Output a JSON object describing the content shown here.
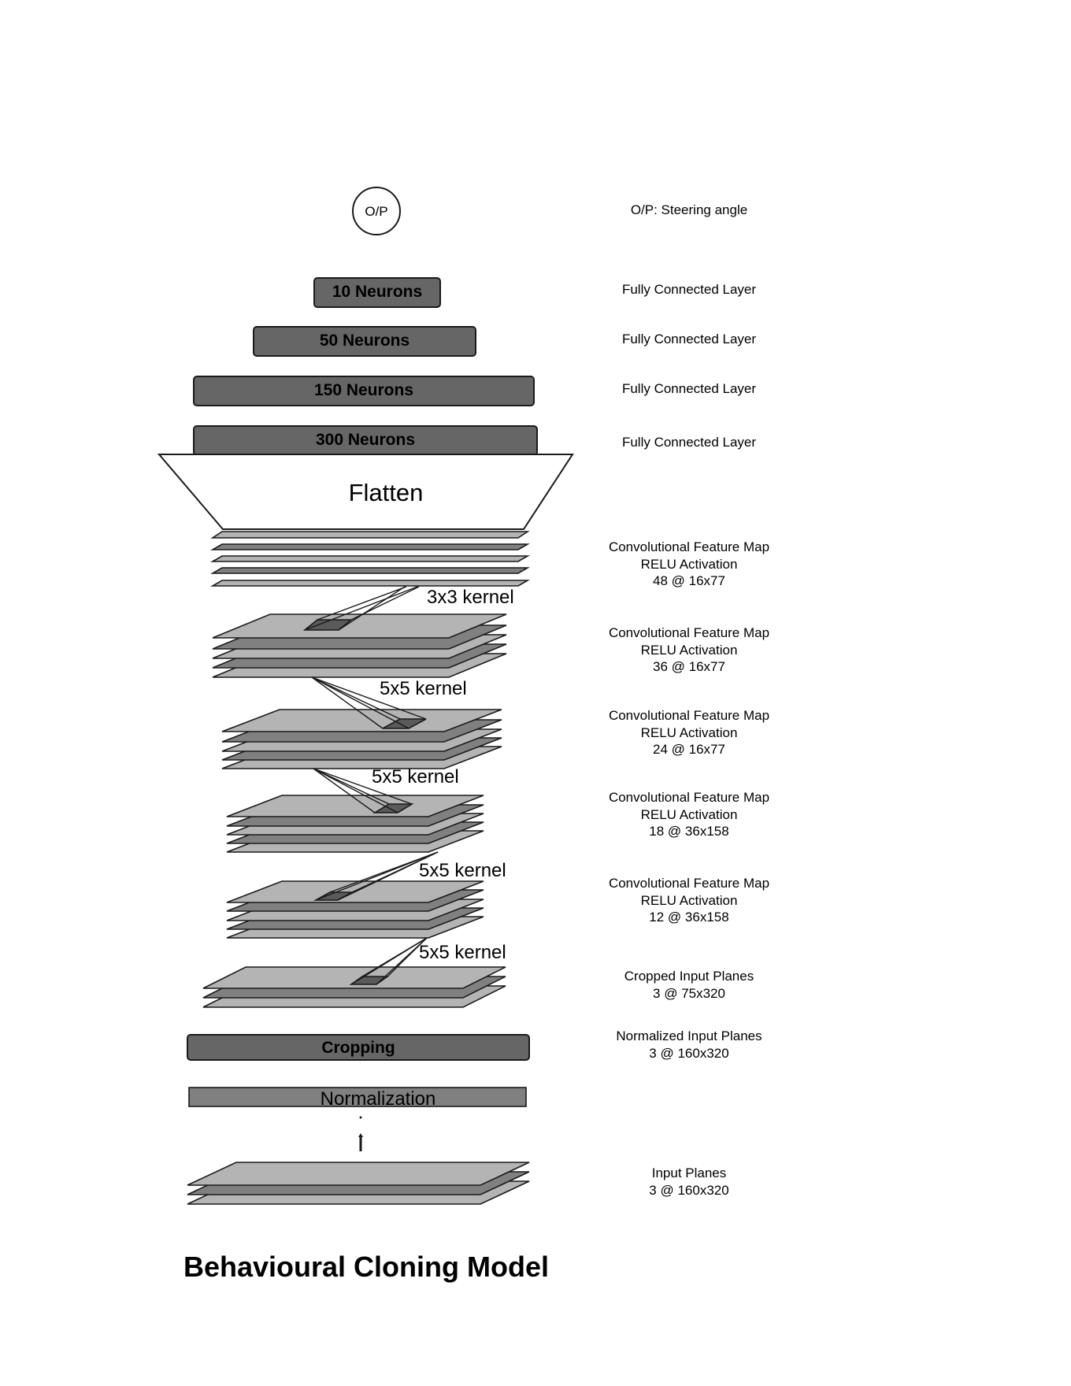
{
  "title": "Behavioural Cloning Model",
  "output_node": "O/P",
  "dense_layers": [
    "10 Neurons",
    "50 Neurons",
    "150 Neurons",
    "300 Neurons"
  ],
  "flatten_label": "Flatten",
  "cropping_label": "Cropping",
  "normalization_label": "Normalization",
  "kernels": [
    "3x3 kernel",
    "5x5 kernel",
    "5x5 kernel",
    "5x5 kernel",
    "5x5 kernel"
  ],
  "side_labels": [
    {
      "lines": [
        "O/P: Steering angle"
      ]
    },
    {
      "lines": [
        "Fully Connected Layer"
      ]
    },
    {
      "lines": [
        "Fully Connected Layer"
      ]
    },
    {
      "lines": [
        "Fully Connected Layer"
      ]
    },
    {
      "lines": [
        "Fully Connected Layer"
      ]
    },
    {
      "lines": [
        "Convolutional Feature Map",
        "RELU Activation",
        "48 @ 16x77"
      ]
    },
    {
      "lines": [
        "Convolutional Feature Map",
        "RELU Activation",
        "36 @ 16x77"
      ]
    },
    {
      "lines": [
        "Convolutional Feature Map",
        "RELU Activation",
        "24 @ 16x77"
      ]
    },
    {
      "lines": [
        "Convolutional Feature Map",
        "RELU Activation",
        "18 @ 36x158"
      ]
    },
    {
      "lines": [
        "Convolutional Feature Map",
        "RELU Activation",
        "12 @ 36x158"
      ]
    },
    {
      "lines": [
        "Cropped Input Planes",
        "3 @ 75x320"
      ]
    },
    {
      "lines": [
        "Normalized Input Planes",
        "3 @ 160x320"
      ]
    },
    {
      "lines": [
        "Input Planes",
        "3 @ 160x320"
      ]
    }
  ],
  "colors": {
    "dark_box": "#666666",
    "light_plane": "#b4b4b4",
    "dark_plane": "#808080",
    "kernel_patch": "#5a5a5a",
    "outline": "#1a1a1a"
  }
}
